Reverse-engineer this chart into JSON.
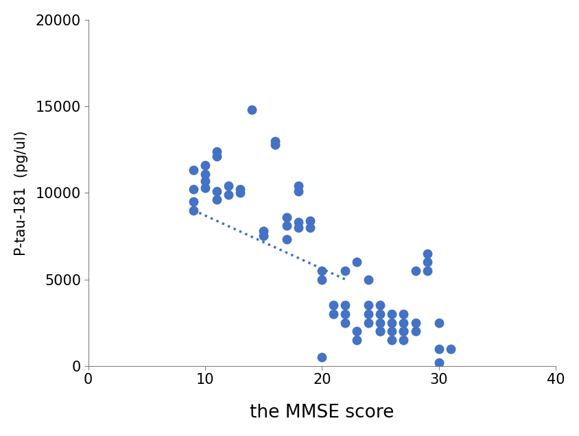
{
  "scatter_x": [
    9,
    9,
    9,
    9,
    10,
    10,
    10,
    10,
    11,
    11,
    11,
    11,
    12,
    12,
    13,
    13,
    14,
    15,
    15,
    16,
    16,
    17,
    17,
    17,
    18,
    18,
    18,
    18,
    19,
    19,
    20,
    20,
    20,
    21,
    21,
    22,
    22,
    22,
    22,
    23,
    23,
    23,
    24,
    24,
    24,
    24,
    25,
    25,
    25,
    25,
    25,
    26,
    26,
    26,
    26,
    27,
    27,
    27,
    27,
    27,
    28,
    28,
    28,
    29,
    29,
    29,
    30,
    30,
    30,
    31
  ],
  "scatter_y": [
    9000,
    9500,
    10200,
    11300,
    10300,
    10700,
    11100,
    11600,
    9600,
    10100,
    12100,
    12400,
    9900,
    10400,
    10000,
    10200,
    14800,
    7500,
    7800,
    12800,
    13000,
    7300,
    8100,
    8600,
    8000,
    8300,
    10100,
    10400,
    8000,
    8400,
    500,
    5000,
    5500,
    3000,
    3500,
    2500,
    3000,
    3500,
    5500,
    1500,
    2000,
    6000,
    2500,
    3000,
    3500,
    5000,
    2000,
    2000,
    2500,
    3000,
    3500,
    1500,
    2000,
    2500,
    3000,
    1500,
    2000,
    2000,
    2500,
    3000,
    2000,
    2500,
    5500,
    5500,
    6000,
    6500,
    200,
    1000,
    2500,
    1000
  ],
  "trendline_x": [
    9,
    22
  ],
  "trendline_y": [
    9000,
    5000
  ],
  "dot_color": "#4472C4",
  "trend_color": "#4472C4",
  "xlabel": "the MMSE score",
  "ylabel": "P-tau-181  (pg/ul)",
  "xlim": [
    0,
    40
  ],
  "ylim": [
    0,
    20000
  ],
  "xticks": [
    0,
    10,
    20,
    30,
    40
  ],
  "yticks": [
    0,
    5000,
    10000,
    15000,
    20000
  ],
  "xlabel_fontsize": 19,
  "ylabel_fontsize": 15,
  "tick_fontsize": 15,
  "dot_size": 100,
  "figure_width": 8.44,
  "figure_height": 6.36,
  "dpi": 100
}
